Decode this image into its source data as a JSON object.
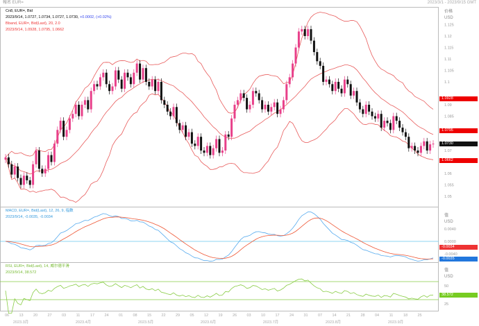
{
  "window": {
    "title": "報名 EUR=",
    "range": "2023/3/1 - 2023/9/15 GMT"
  },
  "main": {
    "line1": "Cn8, EUR=, Bid",
    "line2": "2023/9/14, 1.0727, 1.0734, 1.0727, 1.0730,",
    "change": "+0.0002, (+0.02%)",
    "bb1": "Bband, EUR=, Bid(Last), 20, 2.0",
    "bb2": "2023/9/14, 1.0928, 1.0795, 1.0662",
    "axis_title": "价格",
    "axis_unit": "USD",
    "tags": {
      "upper": "1.0928",
      "mid": "1.0795",
      "last": "1.0730",
      "lower": "1.0662"
    }
  },
  "macd": {
    "line1": "MACD, EUR=, Bid(Last), 12, 26, 9, 指数",
    "line2": "2023/9/14, -0.0035, -0.0034",
    "axis_title": "值",
    "axis_unit": "USD",
    "tags": {
      "signal": "-0.0034",
      "macd": "-0.0035"
    }
  },
  "rsi": {
    "line1": "RSI, EUR=, Bid(Last), 14, 威尔德平滑",
    "line2": "2023/9/14, 38.572",
    "axis_title": "值",
    "axis_unit": "USD",
    "tag": "38.572"
  },
  "colors": {
    "up": "#e8408a",
    "down": "#111111",
    "band": "#e85a5a",
    "macd": "#55aaee",
    "signal": "#ee5533",
    "rsi": "#88cc44",
    "zero": "#66c8ee"
  },
  "chart_data": [
    {
      "type": "candlestick",
      "series": "EUR=",
      "ylim": [
        1.045,
        1.13
      ],
      "yticks": [
        1.125,
        1.12,
        1.115,
        1.11,
        1.105,
        1.1,
        1.09,
        1.085,
        1.07,
        1.06,
        1.055,
        1.05
      ],
      "xticks": [
        "06",
        "13",
        "20",
        "27",
        "03",
        "11",
        "17",
        "24",
        "01",
        "08",
        "15",
        "22",
        "29",
        "05",
        "12",
        "19",
        "26",
        "03",
        "10",
        "17",
        "24",
        "31",
        "07",
        "14",
        "21",
        "28",
        "04",
        "11",
        "18",
        "25"
      ],
      "month_labels": [
        "2023.3月",
        "2023.4月",
        "2023.5月",
        "2023.6月",
        "2023.7月",
        "2023.8月",
        "2023.9月"
      ],
      "close": [
        1.067,
        1.064,
        1.0595,
        1.063,
        1.058,
        1.055,
        1.059,
        1.057,
        1.055,
        1.064,
        1.07,
        1.062,
        1.06,
        1.062,
        1.068,
        1.065,
        1.073,
        1.079,
        1.083,
        1.076,
        1.079,
        1.084,
        1.086,
        1.09,
        1.085,
        1.09,
        1.092,
        1.088,
        1.096,
        1.099,
        1.098,
        1.102,
        1.104,
        1.099,
        1.096,
        1.098,
        1.105,
        1.101,
        1.097,
        1.104,
        1.102,
        1.099,
        1.104,
        1.108,
        1.101,
        1.106,
        1.1,
        1.098,
        1.101,
        1.096,
        1.1,
        1.092,
        1.09,
        1.087,
        1.085,
        1.089,
        1.082,
        1.079,
        1.081,
        1.076,
        1.078,
        1.073,
        1.072,
        1.076,
        1.07,
        1.069,
        1.072,
        1.068,
        1.071,
        1.075,
        1.069,
        1.07,
        1.077,
        1.076,
        1.084,
        1.09,
        1.092,
        1.095,
        1.093,
        1.088,
        1.09,
        1.096,
        1.095,
        1.092,
        1.088,
        1.09,
        1.087,
        1.089,
        1.091,
        1.086,
        1.088,
        1.092,
        1.099,
        1.102,
        1.108,
        1.115,
        1.122,
        1.123,
        1.12,
        1.123,
        1.118,
        1.113,
        1.109,
        1.107,
        1.1,
        1.101,
        1.099,
        1.096,
        1.1,
        1.097,
        1.095,
        1.101,
        1.099,
        1.094,
        1.096,
        1.091,
        1.088,
        1.086,
        1.09,
        1.087,
        1.085,
        1.084,
        1.086,
        1.08,
        1.083,
        1.082,
        1.079,
        1.085,
        1.083,
        1.08,
        1.078,
        1.076,
        1.071,
        1.072,
        1.07,
        1.069,
        1.072,
        1.074,
        1.07,
        1.0727,
        1.073
      ]
    },
    {
      "type": "line",
      "series": "MACD 12,26,9",
      "yticks": [
        0.004,
        0.0,
        -0.004
      ]
    },
    {
      "type": "line",
      "series": "RSI 14",
      "yticks": [
        50,
        25
      ],
      "levels": [
        70,
        30
      ]
    }
  ]
}
